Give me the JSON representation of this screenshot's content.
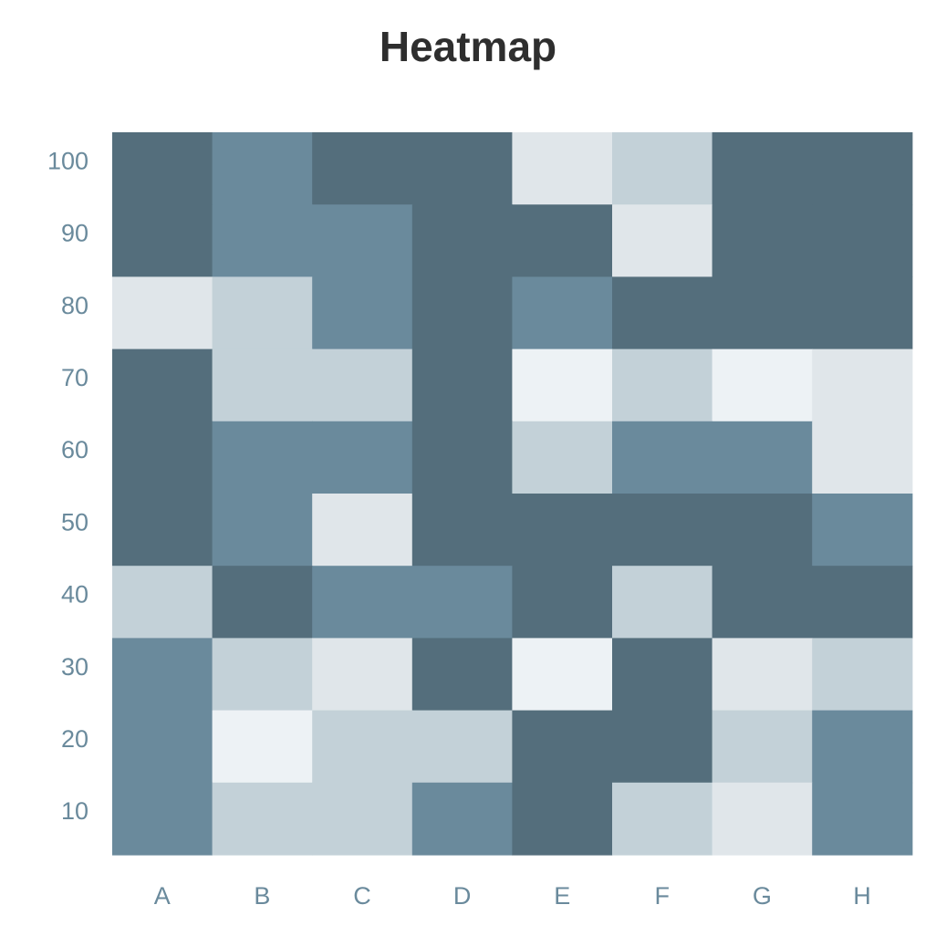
{
  "chart_data": {
    "type": "heatmap",
    "title": "Heatmap",
    "xlabel": "",
    "ylabel": "",
    "x_categories": [
      "A",
      "B",
      "C",
      "D",
      "E",
      "F",
      "G",
      "H"
    ],
    "y_categories": [
      "100",
      "90",
      "80",
      "70",
      "60",
      "50",
      "40",
      "30",
      "20",
      "10"
    ],
    "levels": 5,
    "color_scale": [
      "#edf2f5",
      "#e0e6ea",
      "#c3d1d8",
      "#6a8a9c",
      "#546e7c"
    ],
    "grid": false,
    "legend": "none",
    "values": [
      [
        4,
        3,
        4,
        4,
        1,
        2,
        4,
        4
      ],
      [
        4,
        3,
        3,
        4,
        4,
        1,
        4,
        4
      ],
      [
        1,
        2,
        3,
        4,
        3,
        4,
        4,
        4
      ],
      [
        4,
        2,
        2,
        4,
        0,
        2,
        0,
        1
      ],
      [
        4,
        3,
        3,
        4,
        2,
        3,
        3,
        1
      ],
      [
        4,
        3,
        1,
        4,
        4,
        4,
        4,
        3
      ],
      [
        2,
        4,
        3,
        3,
        4,
        2,
        4,
        4
      ],
      [
        3,
        2,
        1,
        4,
        0,
        4,
        1,
        2
      ],
      [
        3,
        0,
        2,
        2,
        4,
        4,
        2,
        3
      ],
      [
        3,
        2,
        2,
        3,
        4,
        2,
        1,
        3
      ]
    ]
  }
}
